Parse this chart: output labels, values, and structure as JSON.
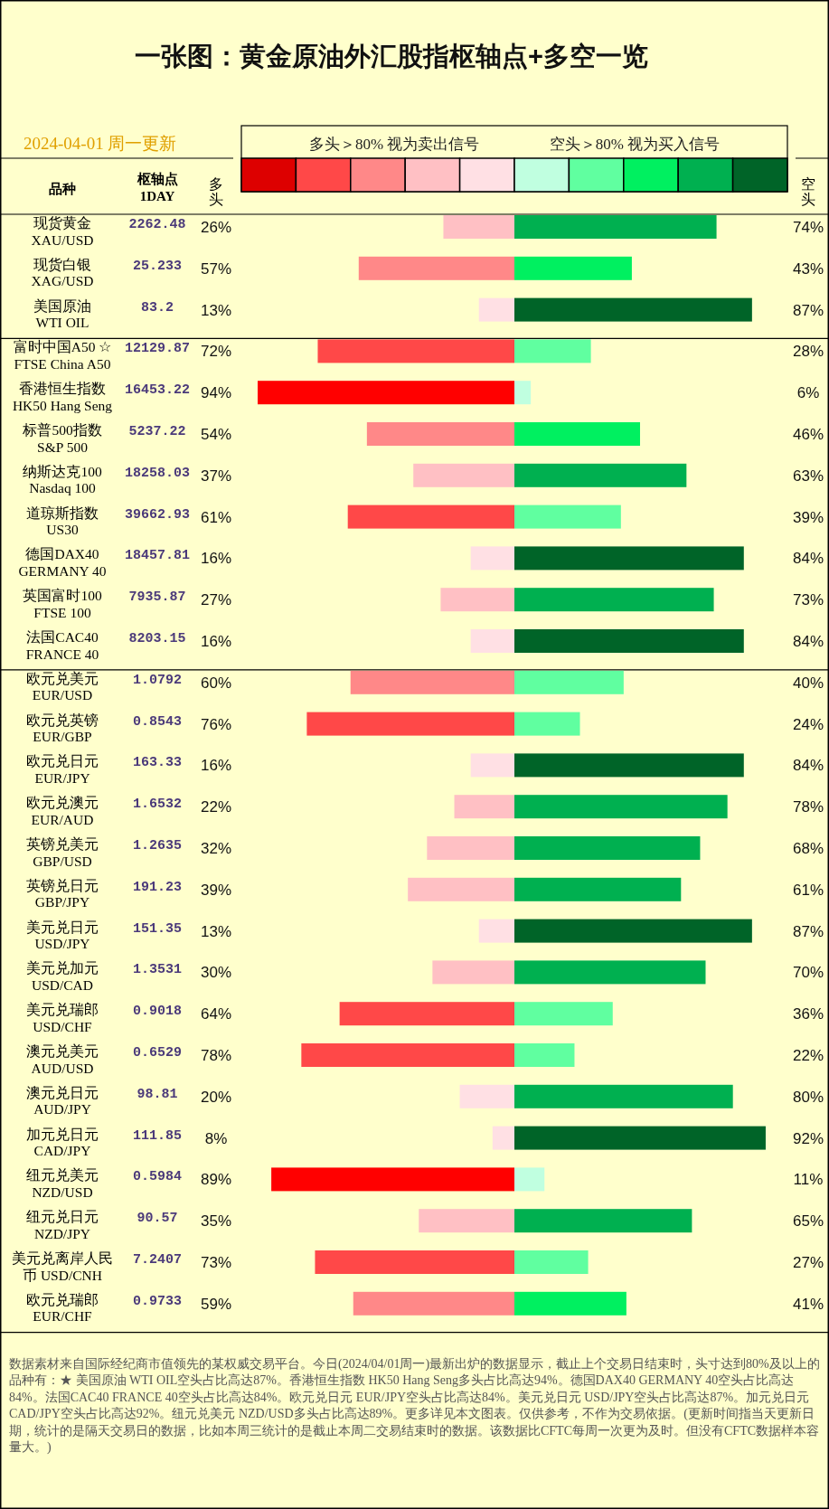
{
  "chart_data": [
    {
      "type": "bar",
      "orientation": "horizontal",
      "title": "一张图：黄金原油外汇股指枢轴点+多空一览",
      "subtitle": "2024-04-01 周一更新",
      "ylabel": "品种",
      "y2label": "枢轴点\n1DAY",
      "annotations": [
        "多头＞80% 视为卖出信号",
        "空头＞80% 视为买入信号"
      ],
      "tick_labels": "y",
      "categories": [
        "现货黄金\nXAU/USD",
        "现货白银\nXAG/USD",
        "美国原油\nWTI OIL"
      ],
      "y2_categories": [
        "2262.48",
        "25.233",
        "83.2"
      ],
      "series": [
        {
          "name": "多头",
          "values": [
            26,
            57,
            13
          ],
          "colors": [
            "#ffc0c4",
            "#ff8888",
            "#ffe0e4"
          ],
          "value_labels": [
            "26%",
            "57%",
            "13%"
          ]
        }
      ]
    },
    {
      "type": "bar",
      "orientation": "horizontal",
      "tick_labels": false,
      "categories": [
        null,
        null,
        null
      ],
      "series": [
        {
          "name": "空头",
          "values": [
            74,
            43,
            87
          ],
          "colors": [
            "#00b050",
            "#00f060",
            "#006428"
          ],
          "value_labels": [
            "74%",
            "43%",
            "87%"
          ]
        }
      ]
    },
    {
      "type": "bar",
      "orientation": "horizontal",
      "tick_labels": "y",
      "categories": [
        "富时中国A50 ☆\nFTSE China A50",
        "香港恒生指数\nHK50 Hang Seng",
        "标普500指数\nS&P 500",
        "纳斯达克100\nNasdaq 100",
        "道琼斯指数\nUS30",
        "德国DAX40\nGERMANY 40",
        "英国富时100\nFTSE 100",
        "法国CAC40\nFRANCE 40"
      ],
      "y2_categories": [
        "12129.87",
        "16453.22",
        "5237.22",
        "18258.03",
        "39662.93",
        "18457.81",
        "7935.87",
        "8203.15"
      ],
      "series": [
        {
          "values": [
            72,
            94,
            54,
            37,
            61,
            16,
            27,
            16
          ],
          "colors": [
            "#ff4848",
            "#ff0000",
            "#ff8888",
            "#ffc0c4",
            "#ff4848",
            "#ffe0e4",
            "#ffc0c4",
            "#ffe0e4"
          ],
          "value_labels": [
            "72%",
            "94%",
            "54%",
            "37%",
            "61%",
            "16%",
            "27%",
            "16%"
          ]
        }
      ]
    },
    {
      "type": "bar",
      "orientation": "horizontal",
      "tick_labels": false,
      "categories": [
        null,
        null,
        null,
        null,
        null,
        null,
        null,
        null
      ],
      "series": [
        {
          "values": [
            28,
            6,
            46,
            63,
            39,
            84,
            73,
            84
          ],
          "colors": [
            "#60ffa0",
            "#c0ffe0",
            "#00f060",
            "#00b050",
            "#60ffa0",
            "#006428",
            "#00b050",
            "#006428"
          ],
          "value_labels": [
            "28%",
            "6%",
            "46%",
            "63%",
            "39%",
            "84%",
            "73%",
            "84%"
          ]
        }
      ]
    },
    {
      "type": "bar",
      "orientation": "horizontal",
      "tick_labels": "y",
      "categories": [
        "欧元兑美元\nEUR/USD",
        "欧元兑英镑\nEUR/GBP",
        "欧元兑日元\nEUR/JPY",
        "欧元兑澳元\nEUR/AUD",
        "英镑兑美元\nGBP/USD",
        "英镑兑日元\nGBP/JPY",
        "美元兑日元\nUSD/JPY",
        "美元兑加元\nUSD/CAD",
        "美元兑瑞郎\nUSD/CHF",
        "澳元兑美元\nAUD/USD",
        "澳元兑日元\nAUD/JPY",
        "加元兑日元\nCAD/JPY",
        "纽元兑美元\nNZD/USD",
        "纽元兑日元\nNZD/JPY",
        "美元兑离岸人民币 USD/CNH",
        "欧元兑瑞郎\nEUR/CHF"
      ],
      "y2_categories": [
        "1.0792",
        "0.8543",
        "163.33",
        "1.6532",
        "1.2635",
        "191.23",
        "151.35",
        "1.3531",
        "0.9018",
        "0.6529",
        "98.81",
        "111.85",
        "0.5984",
        "90.57",
        "7.2407",
        "0.9733"
      ],
      "series": [
        {
          "values": [
            60,
            76,
            16,
            22,
            32,
            39,
            13,
            30,
            64,
            78,
            20,
            8,
            89,
            35,
            73,
            59
          ],
          "colors": [
            "#ff8888",
            "#ff4848",
            "#ffe0e4",
            "#ffc0c4",
            "#ffc0c4",
            "#ffc0c4",
            "#ffe0e4",
            "#ffc0c4",
            "#ff4848",
            "#ff4848",
            "#ffe0e4",
            "#ffe0e4",
            "#ff0000",
            "#ffc0c4",
            "#ff4848",
            "#ff8888"
          ],
          "value_labels": [
            "60%",
            "76%",
            "16%",
            "22%",
            "32%",
            "39%",
            "13%",
            "30%",
            "64%",
            "78%",
            "20%",
            "8%",
            "89%",
            "35%",
            "73%",
            "59%"
          ]
        }
      ]
    },
    {
      "type": "bar",
      "orientation": "horizontal",
      "tick_labels": false,
      "categories": [
        null,
        null,
        null,
        null,
        null,
        null,
        null,
        null,
        null,
        null,
        null,
        null,
        null,
        null,
        null,
        null
      ],
      "series": [
        {
          "values": [
            40,
            24,
            84,
            78,
            68,
            61,
            87,
            70,
            36,
            22,
            80,
            92,
            11,
            65,
            27,
            41
          ],
          "colors": [
            "#60ffa0",
            "#60ffa0",
            "#006428",
            "#00b050",
            "#00b050",
            "#00b050",
            "#006428",
            "#00b050",
            "#60ffa0",
            "#60ffa0",
            "#00b050",
            "#006428",
            "#c0ffe0",
            "#00b050",
            "#60ffa0",
            "#00f060"
          ],
          "value_labels": [
            "40%",
            "24%",
            "84%",
            "78%",
            "68%",
            "61%",
            "87%",
            "70%",
            "36%",
            "22%",
            "80%",
            "92%",
            "11%",
            "65%",
            "27%",
            "41%"
          ]
        }
      ],
      "annotations": [
        "数据素材来自国际经纪商市值领先的某权威交易平台。今日(2024/04/01周一)最新出炉的数据显示，截止上个交易日结束时，头寸达到80%及以上的品种有：★ 美国原油 WTI OIL空头占比高达87%。香港恒生指数 HK50 Hang Seng多头占比高达94%。德国DAX40 GERMANY 40空头占比高达84%。法国CAC40 FRANCE 40空头占比高达84%。欧元兑日元 EUR/JPY空头占比高达84%。美元兑日元 USD/JPY空头占比高达87%。加元兑日元 CAD/JPY空头占比高达92%。纽元兑美元 NZD/USD多头占比高达89%。更多详见本文图表。仅供参考，不作为交易依据。(更新时间指当天更新日期，统计的是隔天交易日的数据，比如本周三统计的是截止本周二交易结束时的数据。该数据比CFTC每周一次更为及时。但没有CFTC数据样本容量大。)"
      ]
    }
  ]
}
